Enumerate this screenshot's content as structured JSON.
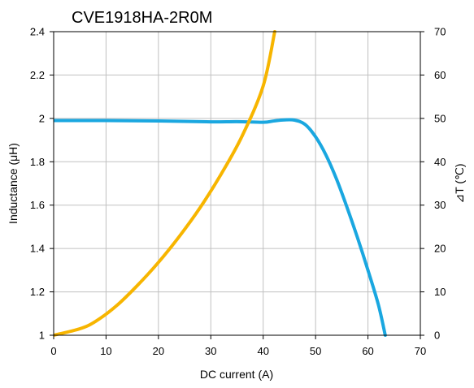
{
  "chart_data": {
    "type": "line",
    "title": "CVE1918HA-2R0M",
    "xlabel": "DC current (A)",
    "ylabel_left": "Inductance (μH)",
    "ylabel_right": "⊿T (℃)",
    "xlim": [
      0,
      70
    ],
    "ylim_left": [
      1,
      2.4
    ],
    "ylim_right": [
      0,
      70
    ],
    "x_ticks": [
      0,
      10,
      20,
      30,
      40,
      50,
      60,
      70
    ],
    "y_left_ticks": [
      "1",
      "1.2",
      "1.4",
      "1.6",
      "1.8",
      "2",
      "2.2",
      "2.4"
    ],
    "y_right_ticks": [
      "0",
      "10",
      "20",
      "30",
      "40",
      "50",
      "60",
      "70"
    ],
    "grid": true,
    "series": [
      {
        "axis": "left",
        "color": "#1aa7e0",
        "x": [
          0,
          10,
          20,
          30,
          35,
          40,
          42,
          44,
          46,
          48,
          50,
          52,
          54,
          56,
          58,
          60,
          62,
          63.3
        ],
        "y": [
          1.99,
          1.99,
          1.988,
          1.984,
          1.985,
          1.982,
          1.988,
          1.993,
          1.992,
          1.972,
          1.915,
          1.83,
          1.72,
          1.59,
          1.45,
          1.3,
          1.14,
          1.0
        ]
      },
      {
        "axis": "right",
        "color": "#f7b500",
        "x": [
          0,
          5,
          8,
          12,
          16,
          20,
          24,
          28,
          32,
          36,
          40,
          42.2
        ],
        "y": [
          0,
          1.5,
          3.2,
          6.8,
          11.5,
          16.8,
          22.8,
          29.5,
          37.2,
          46.0,
          57.5,
          70
        ]
      }
    ]
  }
}
